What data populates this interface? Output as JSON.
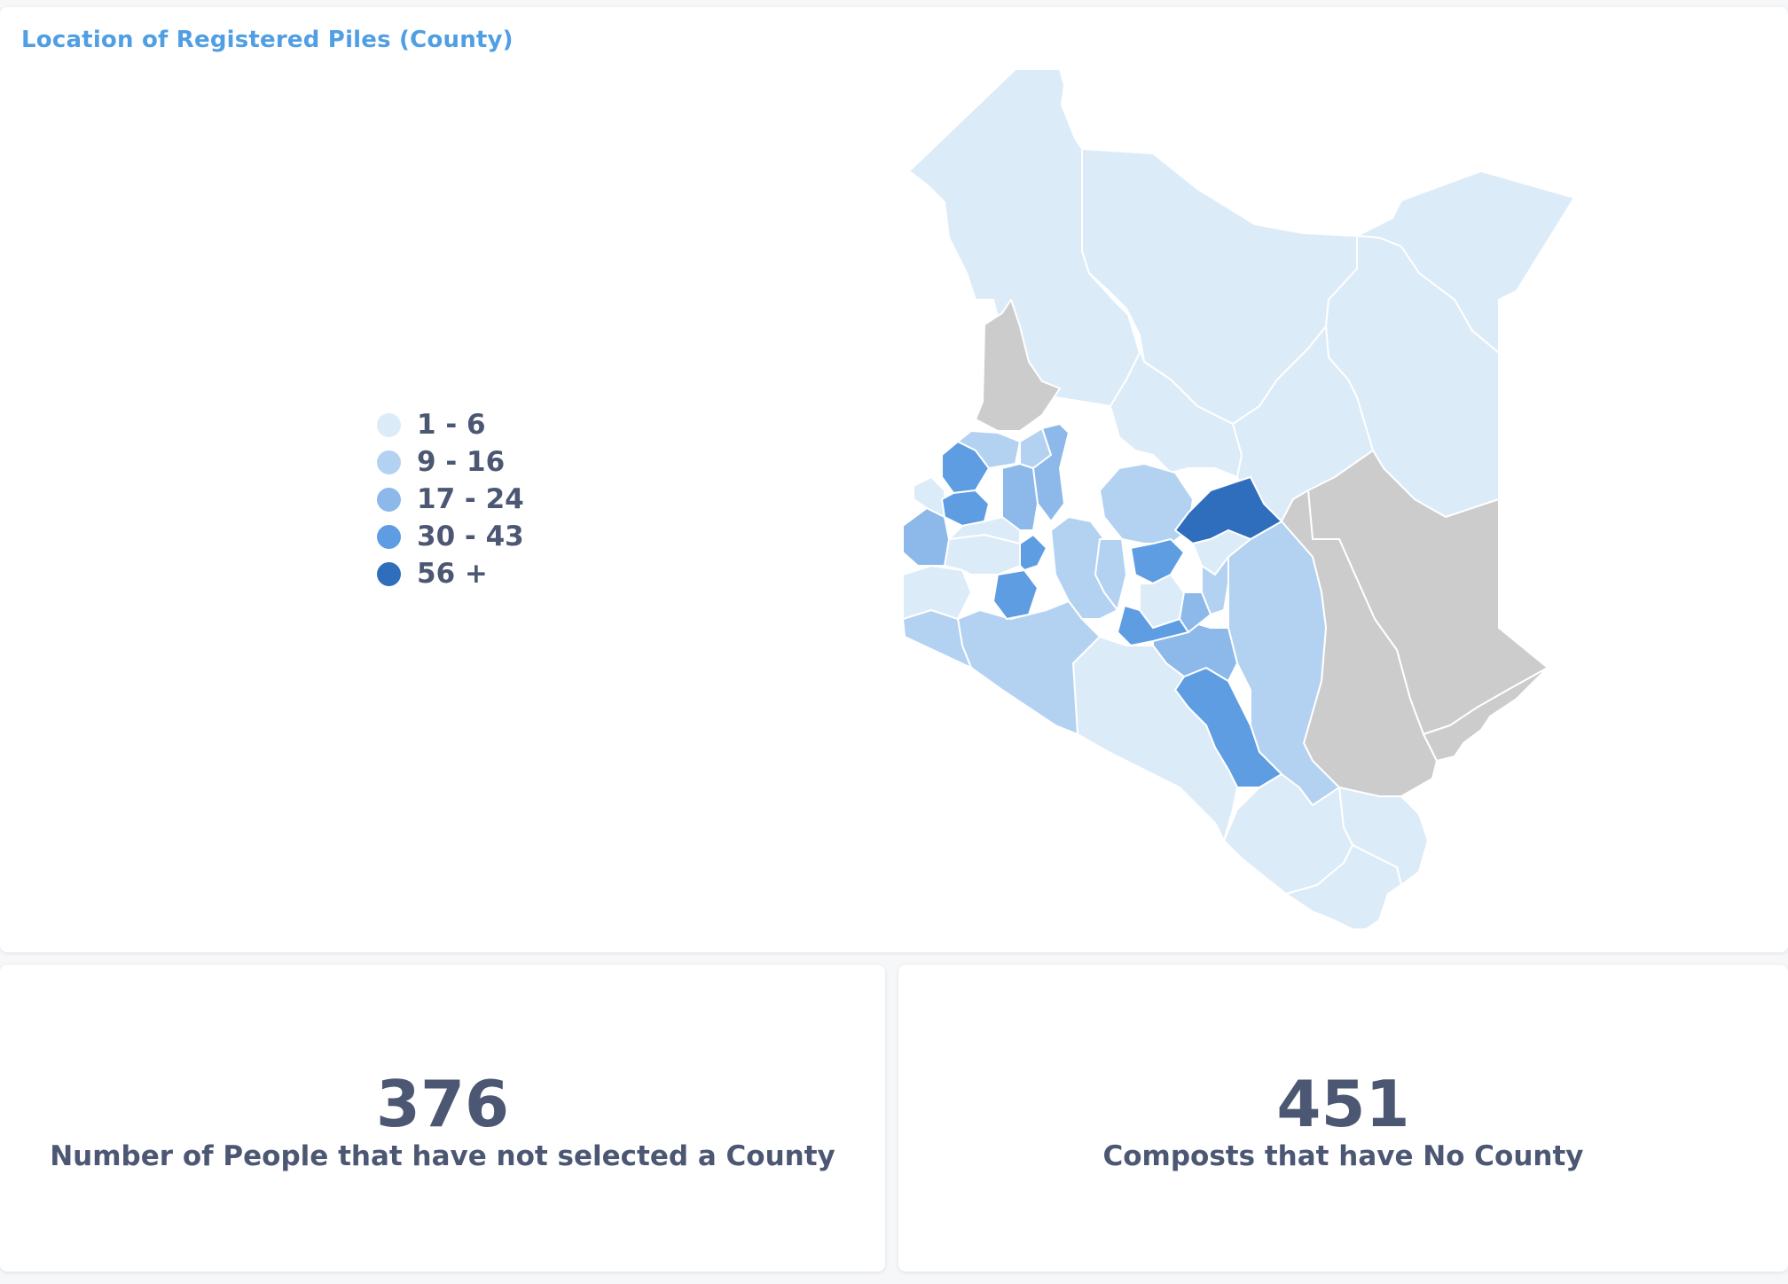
{
  "map_card": {
    "title": "Location of Registered Piles (County)"
  },
  "legend": [
    {
      "label": "1 - 6",
      "color": "#dcebf8"
    },
    {
      "label": "9 - 16",
      "color": "#b3d2f1"
    },
    {
      "label": "17 - 24",
      "color": "#8cb9ea"
    },
    {
      "label": "30 - 43",
      "color": "#5f9de2"
    },
    {
      "label": "56 +",
      "color": "#2f6dbd"
    }
  ],
  "map_colors": {
    "no_data": "#cccccc",
    "border": "#ffffff"
  },
  "scalars": {
    "people_no_county": {
      "value": "376",
      "label": "Number of People that have not selected a County"
    },
    "composts_no_county": {
      "value": "451",
      "label": "Composts that have No County"
    }
  }
}
